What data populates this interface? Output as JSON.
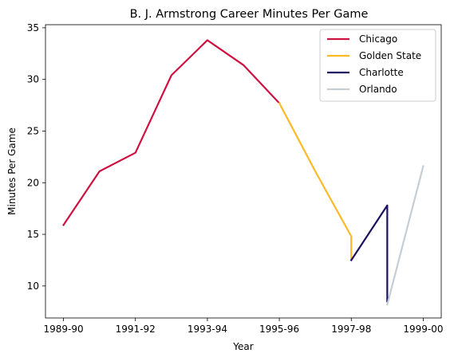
{
  "chart_data": {
    "type": "line",
    "title": "B. J. Armstrong Career Minutes Per Game",
    "xlabel": "Year",
    "ylabel": "Minutes Per Game",
    "x_ticks": [
      "1989-90",
      "1991-92",
      "1993-94",
      "1995-96",
      "1997-98",
      "1999-00"
    ],
    "x_tick_years": [
      1989,
      1991,
      1993,
      1995,
      1997,
      1999
    ],
    "y_ticks": [
      10,
      15,
      20,
      25,
      30,
      35
    ],
    "xlim": [
      1988.5,
      1999.5
    ],
    "ylim": [
      6.9,
      35.3
    ],
    "grid": false,
    "legend_position": "top-right",
    "series": [
      {
        "name": "Chicago",
        "color": "#CE1141",
        "points": [
          {
            "x": 1989,
            "y": 15.9
          },
          {
            "x": 1990,
            "y": 21.1
          },
          {
            "x": 1991,
            "y": 22.9
          },
          {
            "x": 1992,
            "y": 30.4
          },
          {
            "x": 1993,
            "y": 33.8
          },
          {
            "x": 1994,
            "y": 31.4
          },
          {
            "x": 1995,
            "y": 27.7
          }
        ]
      },
      {
        "name": "Golden State",
        "color": "#FDB927",
        "points": [
          {
            "x": 1995,
            "y": 27.7
          },
          {
            "x": 1996,
            "y": 21.1
          },
          {
            "x": 1997,
            "y": 14.8
          },
          {
            "x": 1997,
            "y": 12.5
          }
        ]
      },
      {
        "name": "Charlotte",
        "color": "#1D1160",
        "points": [
          {
            "x": 1997,
            "y": 12.5
          },
          {
            "x": 1998,
            "y": 17.8
          },
          {
            "x": 1998,
            "y": 8.5
          }
        ]
      },
      {
        "name": "Orlando",
        "color": "#C4CED4",
        "points": [
          {
            "x": 1998,
            "y": 8.2
          },
          {
            "x": 1999,
            "y": 21.6
          }
        ]
      }
    ]
  }
}
